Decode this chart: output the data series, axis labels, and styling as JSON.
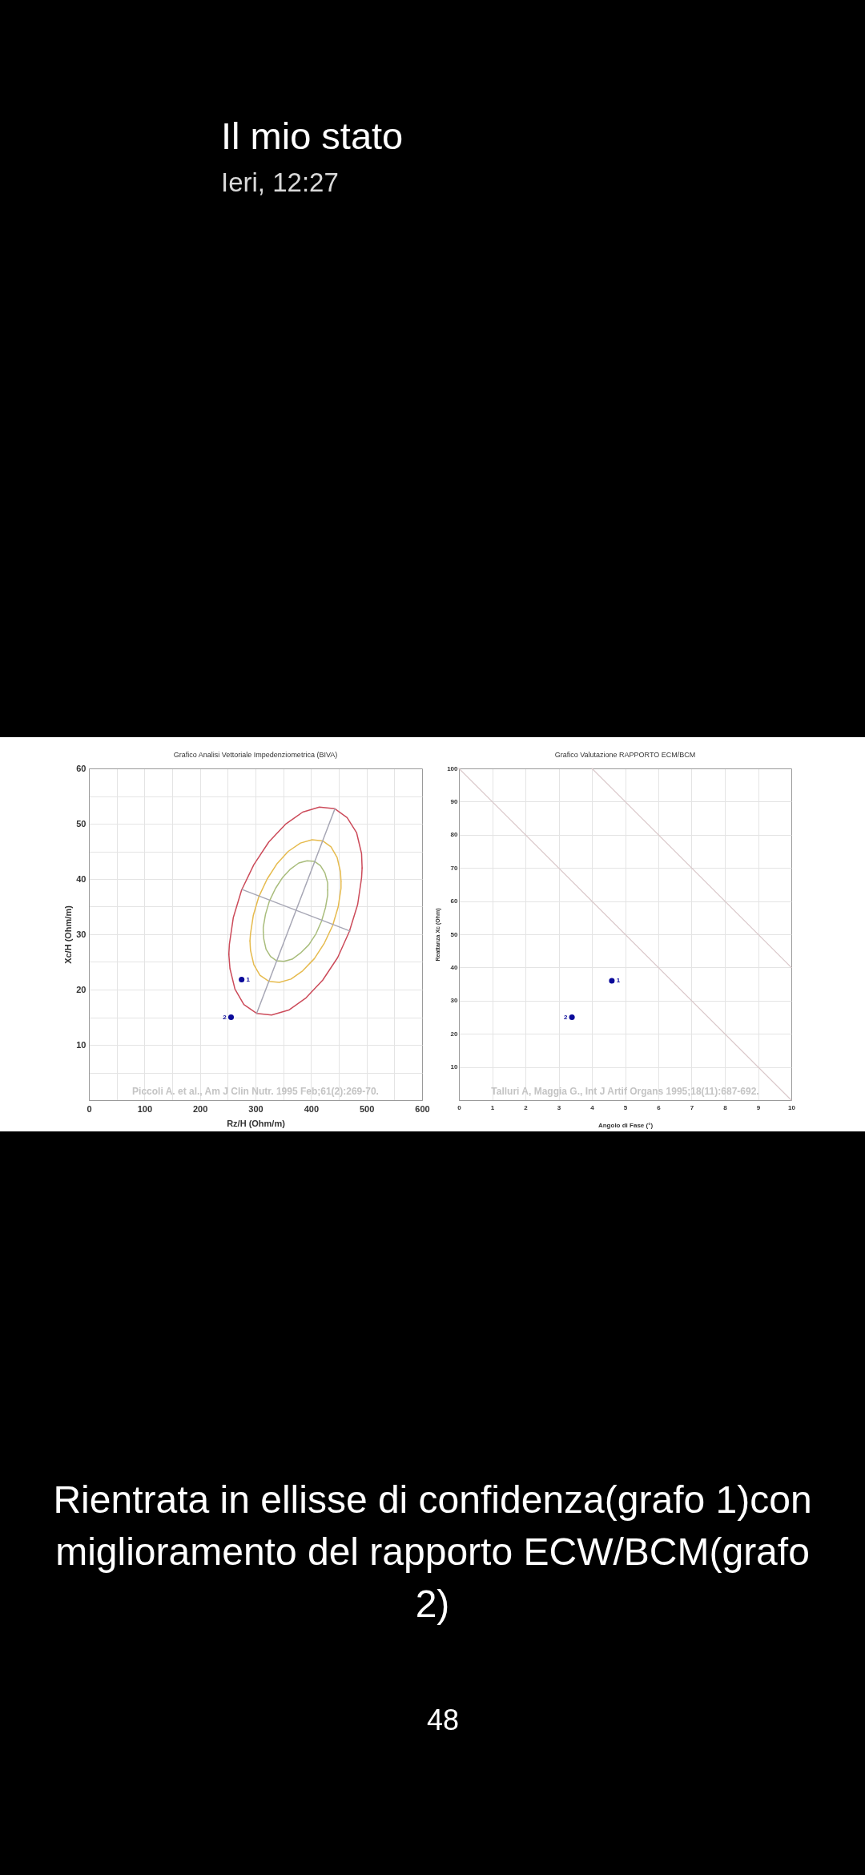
{
  "chart_data": [
    {
      "type": "scatter",
      "title": "Grafico Analisi Vettoriale Impedenziometrica (BIVA)",
      "xlabel": "Rz/H (Ohm/m)",
      "ylabel": "Xc/H (Ohm/m)",
      "xlim": [
        0,
        600
      ],
      "ylim": [
        0,
        60
      ],
      "xticks": [
        0,
        {
          "value": 50,
          "label": null
        },
        100,
        {
          "value": 150,
          "label": null
        },
        200,
        {
          "value": 250,
          "label": null
        },
        300,
        {
          "value": 350,
          "label": null
        },
        400,
        {
          "value": 450,
          "label": null
        },
        500,
        {
          "value": 550,
          "label": null
        },
        600
      ],
      "yticks": [
        {
          "value": 0,
          "label": null
        },
        {
          "value": 5,
          "label": null
        },
        10,
        {
          "value": 15,
          "label": null
        },
        20,
        {
          "value": 25,
          "label": null
        },
        30,
        {
          "value": 35,
          "label": null
        },
        40,
        {
          "value": 45,
          "label": null
        },
        50,
        {
          "value": 55,
          "label": null
        },
        60
      ],
      "grid": true,
      "series": [
        {
          "type": "line",
          "color": "#cc4b5a",
          "x": [
            252,
            253,
            260,
            275,
            297,
            324,
            354,
            385,
            415,
            443,
            465,
            482,
            491,
            492
          ],
          "values": [
            26.4,
            28.2,
            33.0,
            38.0,
            42.6,
            46.7,
            49.9,
            52.1,
            53.0,
            52.7,
            51.1,
            48.4,
            44.6,
            42.0
          ]
        },
        {
          "type": "line",
          "color": "#cc4b5a",
          "x": [
            252,
            254,
            263,
            279,
            302,
            329,
            360,
            391,
            421,
            448,
            469,
            484,
            491,
            492
          ],
          "values": [
            26.4,
            23.8,
            20.1,
            17.3,
            15.7,
            15.4,
            16.3,
            18.5,
            21.7,
            25.8,
            30.5,
            35.4,
            40.2,
            42.0
          ]
        },
        {
          "type": "line",
          "color": "#e6bb4e",
          "x": [
            290,
            291,
            296,
            306,
            321,
            339,
            359,
            381,
            402,
            421,
            436,
            447,
            453,
            454
          ],
          "values": [
            28.8,
            30.1,
            33.4,
            36.8,
            40.0,
            42.8,
            45.0,
            46.5,
            47.1,
            46.9,
            45.8,
            43.9,
            41.3,
            39.6
          ]
        },
        {
          "type": "line",
          "color": "#e6bb4e",
          "x": [
            290,
            291,
            297,
            308,
            324,
            343,
            364,
            385,
            406,
            424,
            439,
            449,
            454,
            454
          ],
          "values": [
            28.8,
            27.1,
            24.5,
            22.6,
            21.5,
            21.3,
            21.9,
            23.4,
            25.6,
            28.4,
            31.6,
            35.0,
            38.3,
            39.6
          ]
        },
        {
          "type": "line",
          "color": "#a9bd7c",
          "x": [
            314,
            314,
            318,
            325,
            336,
            349,
            363,
            378,
            393,
            406,
            417,
            425,
            430,
            430
          ],
          "values": [
            30.4,
            31.3,
            33.6,
            36.0,
            38.3,
            40.3,
            41.8,
            42.9,
            43.3,
            43.2,
            42.4,
            41.1,
            39.3,
            38.0
          ]
        },
        {
          "type": "line",
          "color": "#a9bd7c",
          "x": [
            314,
            315,
            319,
            327,
            338,
            351,
            366,
            381,
            396,
            409,
            419,
            426,
            430,
            430
          ],
          "values": [
            30.4,
            29.1,
            27.3,
            26.0,
            25.2,
            25.1,
            25.5,
            26.6,
            28.1,
            30.1,
            32.4,
            34.8,
            37.1,
            38.0
          ]
        },
        {
          "type": "line",
          "color": "#a7a7b5",
          "x": [
            302,
            443
          ],
          "values": [
            15.7,
            52.7
          ]
        },
        {
          "type": "line",
          "color": "#a7a7b5",
          "x": [
            276,
            470
          ],
          "values": [
            38.1,
            30.6
          ]
        },
        {
          "type": "scatter",
          "color": "#0a0a9a",
          "marker": "circle",
          "x": [
            275,
            256
          ],
          "values": [
            21.8,
            15.0
          ]
        }
      ],
      "annotations": [
        "Il mio stato",
        "Ieri, 12:27",
        {
          "text": "1",
          "x": 275,
          "y": 21.8
        },
        {
          "text": "2",
          "x": 256,
          "y": 15.0
        },
        "Piccoli A. et al., Am J Clin Nutr. 1995 Feb;61(2):269-70."
      ]
    },
    {
      "type": "scatter",
      "title": "Grafico Valutazione RAPPORTO ECM/BCM",
      "xlabel": "Angolo di Fase (°)",
      "ylabel": "Reattanza Xc (Ohm)",
      "xlim": [
        0,
        10
      ],
      "ylim": [
        0,
        100
      ],
      "xticks": [
        0,
        1,
        2,
        3,
        4,
        5,
        6,
        7,
        8,
        9,
        10
      ],
      "yticks": [
        {
          "value": 0,
          "label": null
        },
        10,
        20,
        30,
        40,
        50,
        60,
        70,
        80,
        90,
        100
      ],
      "grid": true,
      "series": [
        {
          "type": "line",
          "color": "#dac8ca",
          "x": [
            0,
            10
          ],
          "values": [
            100,
            0
          ]
        },
        {
          "type": "line",
          "color": "#dac8ca",
          "x": [
            4,
            10
          ],
          "values": [
            100,
            40
          ]
        },
        {
          "type": "scatter",
          "color": "#0a0a9a",
          "marker": "circle",
          "x": [
            4.6,
            3.4
          ],
          "values": [
            36,
            25
          ]
        }
      ],
      "annotations": [
        {
          "text": "1",
          "x": 4.6,
          "y": 36
        },
        {
          "text": "2",
          "x": 3.4,
          "y": 25
        },
        "Talluri A, Maggia G., Int J Artif Organs 1995;18(11):687-692.",
        "Rientrata in ellisse di confidenza(grafo 1)con miglioramento del rapporto ECW/BCM(grafo 2)",
        "48"
      ]
    }
  ]
}
